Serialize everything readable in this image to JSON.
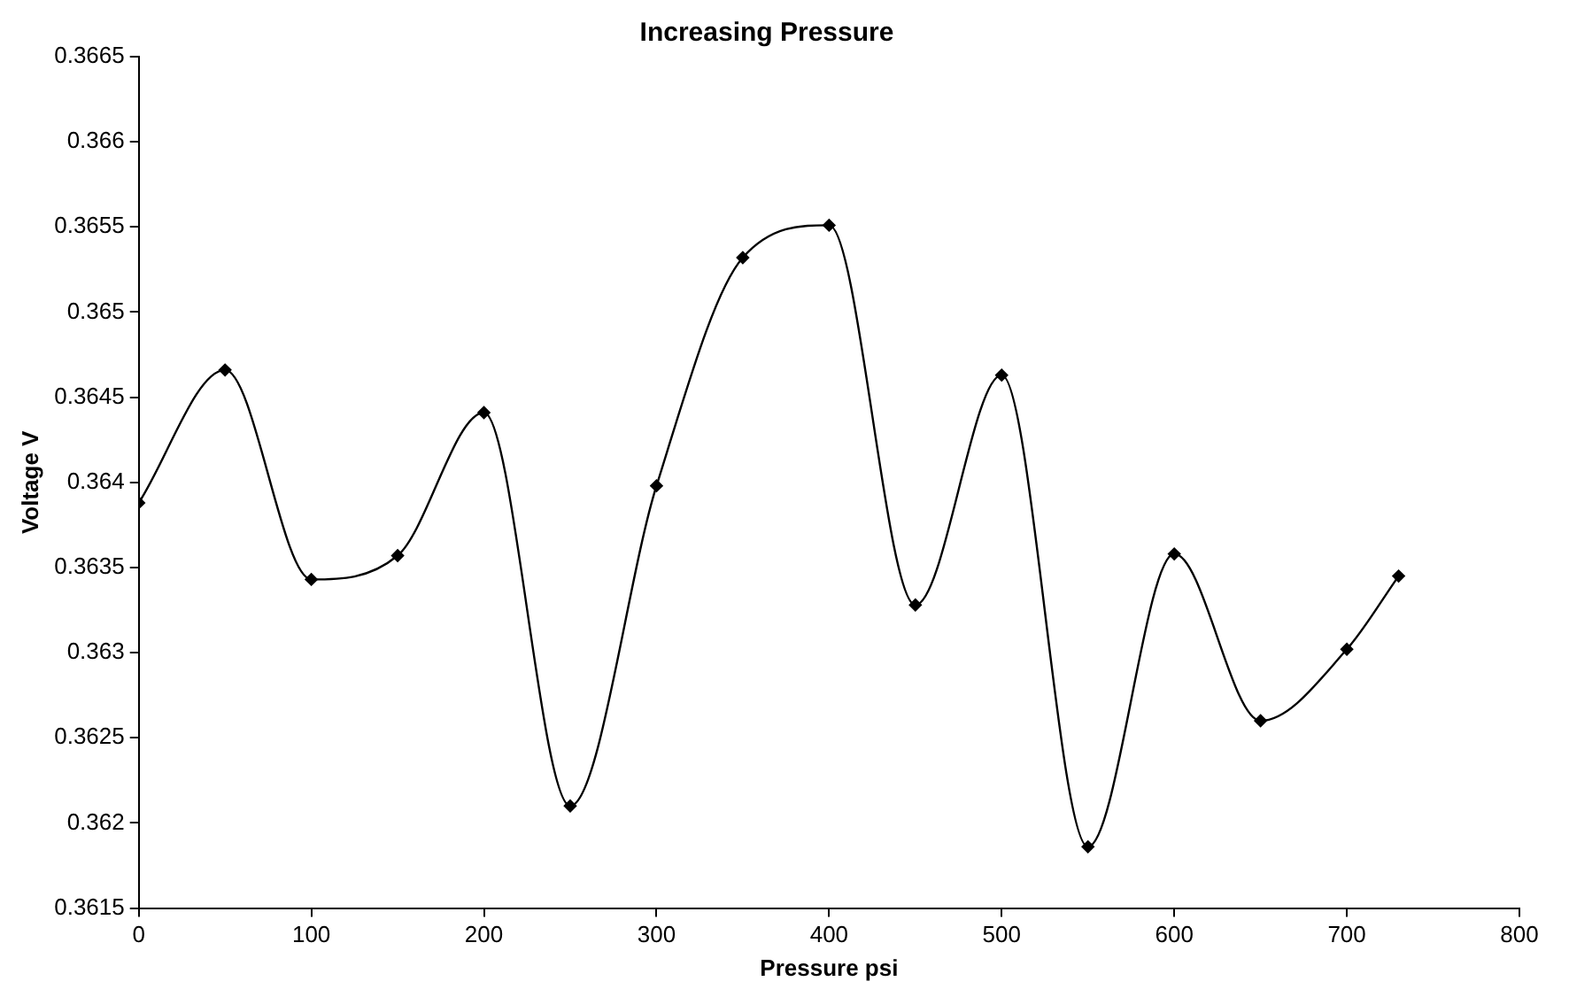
{
  "chart_data": {
    "type": "line",
    "title": "Increasing Pressure",
    "xlabel": "Pressure psi",
    "ylabel": "Voltage V",
    "x": [
      0,
      50,
      100,
      150,
      200,
      250,
      300,
      350,
      400,
      450,
      500,
      550,
      600,
      650,
      700,
      730
    ],
    "series": [
      {
        "color": "#000000",
        "values": [
          0.36388,
          0.36466,
          0.36343,
          0.36357,
          0.36441,
          0.3621,
          0.36398,
          0.36532,
          0.36551,
          0.36328,
          0.36463,
          0.36186,
          0.36358,
          0.3626,
          0.36302,
          0.36345
        ]
      }
    ],
    "xlim": [
      0,
      800
    ],
    "xticks": [
      0,
      100,
      200,
      300,
      400,
      500,
      600,
      700,
      800
    ],
    "ylim": [
      0.3615,
      0.3665
    ],
    "yticks": [
      0.3615,
      0.362,
      0.3625,
      0.363,
      0.3635,
      0.364,
      0.3645,
      0.365,
      0.3655,
      0.366,
      0.3665
    ],
    "grid": false,
    "legend": false,
    "marker": "diamond",
    "line_style": "solid"
  }
}
